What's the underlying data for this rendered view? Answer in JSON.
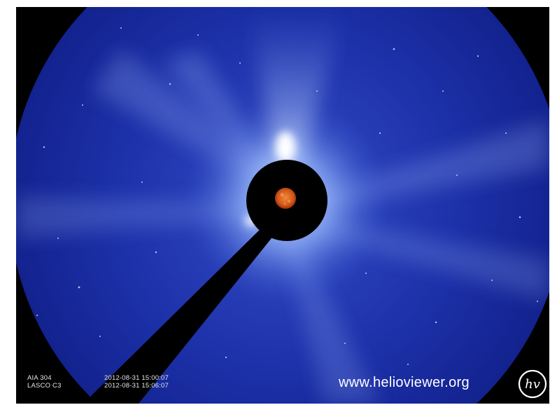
{
  "image": {
    "scene": "LASCO C3 coronagraph image composited with AIA 304 solar disk",
    "colors": {
      "field_blue": "#1b2fa6",
      "field_blue_dark": "#11208a",
      "occulter": "#000000",
      "corona_glow": "#d9ecff",
      "sun_disk": "#d2571a"
    }
  },
  "labels": {
    "instruments": [
      "AIA 304",
      "LASCO C3"
    ],
    "timestamps": [
      "2012-08-31 15:00:07",
      "2012-08-31 15:06:07"
    ]
  },
  "watermark": {
    "text": "www.helioviewer.org",
    "logo_text": "hv",
    "logo_icon": "helioviewer-logo-icon"
  }
}
